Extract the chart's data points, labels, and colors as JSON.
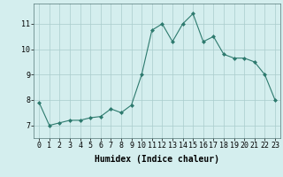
{
  "x": [
    0,
    1,
    2,
    3,
    4,
    5,
    6,
    7,
    8,
    9,
    10,
    11,
    12,
    13,
    14,
    15,
    16,
    17,
    18,
    19,
    20,
    21,
    22,
    23
  ],
  "y": [
    7.9,
    7.0,
    7.1,
    7.2,
    7.2,
    7.3,
    7.35,
    7.65,
    7.5,
    7.8,
    9.0,
    10.75,
    11.0,
    10.3,
    11.0,
    11.4,
    10.3,
    10.5,
    9.8,
    9.65,
    9.65,
    9.5,
    9.0,
    8.0
  ],
  "line_color": "#2d7a6e",
  "marker": "D",
  "marker_size": 2.0,
  "bg_color": "#d4eeee",
  "grid_color": "#aacccc",
  "xlabel": "Humidex (Indice chaleur)",
  "xlabel_fontsize": 7,
  "tick_fontsize": 6,
  "ylim": [
    6.5,
    11.8
  ],
  "yticks": [
    7,
    8,
    9,
    10,
    11
  ],
  "xticks": [
    0,
    1,
    2,
    3,
    4,
    5,
    6,
    7,
    8,
    9,
    10,
    11,
    12,
    13,
    14,
    15,
    16,
    17,
    18,
    19,
    20,
    21,
    22,
    23
  ],
  "xlim": [
    -0.5,
    23.5
  ]
}
